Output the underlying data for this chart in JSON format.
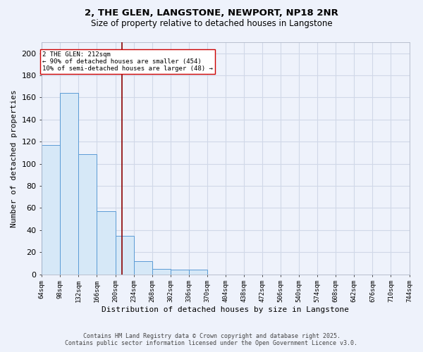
{
  "title_line1": "2, THE GLEN, LANGSTONE, NEWPORT, NP18 2NR",
  "title_line2": "Size of property relative to detached houses in Langstone",
  "xlabel": "Distribution of detached houses by size in Langstone",
  "ylabel": "Number of detached properties",
  "bin_edges": [
    64,
    98,
    132,
    166,
    200,
    234,
    268,
    302,
    336,
    370,
    404,
    438,
    472,
    506,
    540,
    574,
    608,
    642,
    676,
    710,
    744
  ],
  "bar_heights": [
    117,
    164,
    109,
    57,
    35,
    12,
    5,
    4,
    4,
    0,
    0,
    0,
    0,
    0,
    0,
    0,
    0,
    0,
    0,
    0
  ],
  "bar_color": "#d6e8f7",
  "bar_edge_color": "#5b9bd5",
  "vline_x": 212,
  "vline_color": "#8b0000",
  "annotation_text": "2 THE GLEN: 212sqm\n← 90% of detached houses are smaller (454)\n10% of semi-detached houses are larger (48) →",
  "annotation_box_color": "#ffffff",
  "annotation_box_edge_color": "#cc0000",
  "ylim": [
    0,
    210
  ],
  "yticks": [
    0,
    20,
    40,
    60,
    80,
    100,
    120,
    140,
    160,
    180,
    200
  ],
  "background_color": "#eef2fb",
  "grid_color": "#d0d8e8",
  "footer_line1": "Contains HM Land Registry data © Crown copyright and database right 2025.",
  "footer_line2": "Contains public sector information licensed under the Open Government Licence v3.0."
}
